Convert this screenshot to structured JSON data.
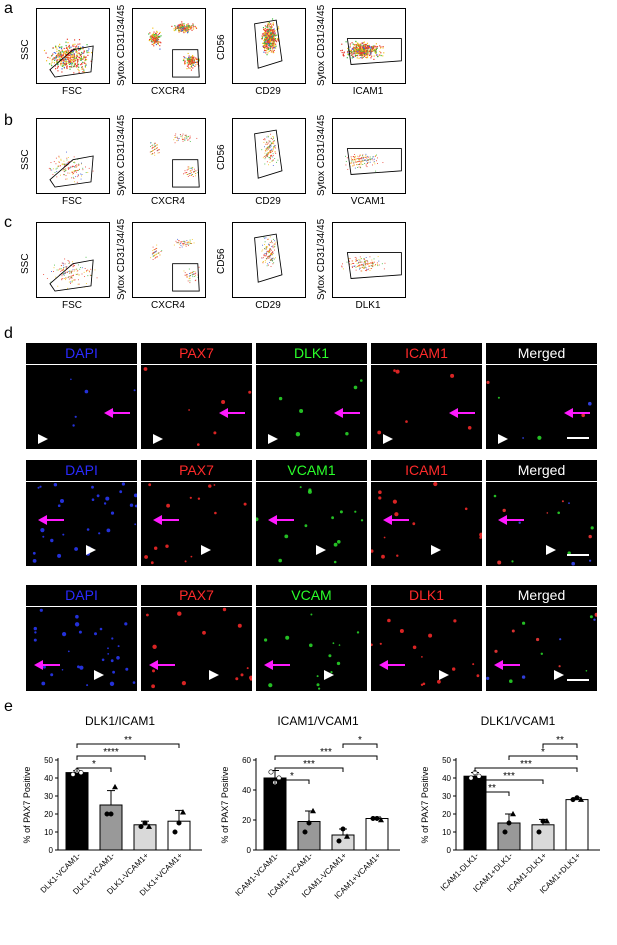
{
  "panels": {
    "a": "a",
    "b": "b",
    "c": "c",
    "d": "d",
    "e": "e"
  },
  "flow_rows": [
    {
      "panel": "a",
      "plots": [
        {
          "ylabel": "SSC",
          "xlabel": "FSC"
        },
        {
          "ylabel": "Sytox CD31/34/45",
          "xlabel": "CXCR4"
        },
        {
          "ylabel": "CD56",
          "xlabel": "CD29"
        },
        {
          "ylabel": "Sytox CD31/34/45",
          "xlabel": "ICAM1"
        }
      ]
    },
    {
      "panel": "b",
      "plots": [
        {
          "ylabel": "SSC",
          "xlabel": "FSC"
        },
        {
          "ylabel": "Sytox CD31/34/45",
          "xlabel": "CXCR4"
        },
        {
          "ylabel": "CD56",
          "xlabel": "CD29"
        },
        {
          "ylabel": "Sytox CD31/34/45",
          "xlabel": "VCAM1"
        }
      ]
    },
    {
      "panel": "c",
      "plots": [
        {
          "ylabel": "SSC",
          "xlabel": "FSC"
        },
        {
          "ylabel": "Sytox CD31/34/45",
          "xlabel": "CXCR4"
        },
        {
          "ylabel": "CD56",
          "xlabel": "CD29"
        },
        {
          "ylabel": "Sytox CD31/34/45",
          "xlabel": "DLK1"
        }
      ]
    }
  ],
  "micro_rows": [
    {
      "titles": [
        "DAPI",
        "PAX7",
        "DLK1",
        "ICAM1",
        "Merged"
      ],
      "colors": [
        "#2a2aff",
        "#ff2a2a",
        "#2aff2a",
        "#ff2a2a",
        "#ffffff"
      ]
    },
    {
      "titles": [
        "DAPI",
        "PAX7",
        "VCAM1",
        "ICAM1",
        "Merged"
      ],
      "colors": [
        "#2a2aff",
        "#ff2a2a",
        "#2aff2a",
        "#ff2a2a",
        "#ffffff"
      ]
    },
    {
      "titles": [
        "DAPI",
        "PAX7",
        "VCAM",
        "DLK1",
        "Merged"
      ],
      "colors": [
        "#2a2aff",
        "#ff2a2a",
        "#2aff2a",
        "#ff2a2a",
        "#ffffff"
      ]
    }
  ],
  "chart_data": [
    {
      "type": "bar",
      "title": "DLK1/ICAM1",
      "ylabel": "% of PAX7 Positive",
      "ylim": [
        0,
        50
      ],
      "yticks": [
        0,
        10,
        20,
        30,
        40,
        50
      ],
      "categories": [
        "DLK1-VCAM1-",
        "DLK1+VCAM1-",
        "DLK1-VCAM1+",
        "DLK1+VCAM1+"
      ],
      "values": [
        43,
        25,
        14,
        16
      ],
      "errors": [
        1,
        8,
        2,
        6
      ],
      "points": [
        [
          42,
          44,
          43
        ],
        [
          20,
          20,
          35
        ],
        [
          13,
          15,
          13
        ],
        [
          10,
          15,
          21
        ]
      ],
      "fill_colors": [
        "#000000",
        "#999999",
        "#d9d9d9",
        "#ffffff"
      ],
      "significance": [
        {
          "from": 0,
          "to": 1,
          "label": "*"
        },
        {
          "from": 0,
          "to": 2,
          "label": "****"
        },
        {
          "from": 0,
          "to": 3,
          "label": "**"
        }
      ]
    },
    {
      "type": "bar",
      "title": "ICAM1/VCAM1",
      "ylabel": "% of PAX7 Positive",
      "ylim": [
        0,
        60
      ],
      "yticks": [
        0,
        20,
        40,
        60
      ],
      "categories": [
        "ICAM1-VCAM1-",
        "ICAM1+VCAM1-",
        "ICAM1-VCAM1+",
        "ICAM1+VCAM1+"
      ],
      "values": [
        48,
        19,
        10,
        21
      ],
      "errors": [
        5,
        7,
        4,
        1
      ],
      "points": [
        [
          52,
          45,
          48
        ],
        [
          12,
          18,
          26
        ],
        [
          6,
          14,
          9
        ],
        [
          21,
          21,
          20
        ]
      ],
      "fill_colors": [
        "#000000",
        "#999999",
        "#d9d9d9",
        "#ffffff"
      ],
      "significance": [
        {
          "from": 0,
          "to": 1,
          "label": "*"
        },
        {
          "from": 0,
          "to": 2,
          "label": "***"
        },
        {
          "from": 0,
          "to": 3,
          "label": "***"
        },
        {
          "from": 2,
          "to": 3,
          "label": "*"
        }
      ]
    },
    {
      "type": "bar",
      "title": "DLK1/VCAM1",
      "ylabel": "% of PAX7 Positive",
      "ylim": [
        0,
        50
      ],
      "yticks": [
        0,
        10,
        20,
        30,
        40,
        50
      ],
      "categories": [
        "ICAM1-DLK1-",
        "ICAM1+DLK1-",
        "ICAM1-DLK1+",
        "ICAM1+DLK1+"
      ],
      "values": [
        41,
        15,
        14,
        28
      ],
      "errors": [
        2,
        5,
        3,
        1
      ],
      "points": [
        [
          40,
          43,
          41
        ],
        [
          10,
          15,
          20
        ],
        [
          10,
          16,
          16
        ],
        [
          28,
          29,
          28
        ]
      ],
      "fill_colors": [
        "#000000",
        "#999999",
        "#d9d9d9",
        "#ffffff"
      ],
      "significance": [
        {
          "from": 0,
          "to": 1,
          "label": "**"
        },
        {
          "from": 0,
          "to": 2,
          "label": "***"
        },
        {
          "from": 0,
          "to": 3,
          "label": "***"
        },
        {
          "from": 1,
          "to": 3,
          "label": "*"
        },
        {
          "from": 2,
          "to": 3,
          "label": "**"
        }
      ]
    }
  ]
}
